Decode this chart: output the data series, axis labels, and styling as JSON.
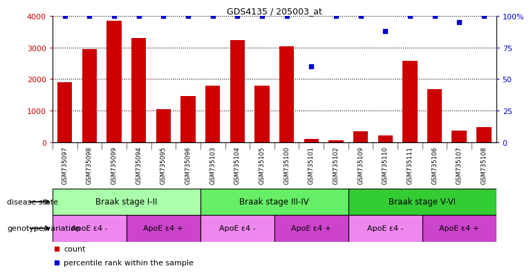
{
  "title": "GDS4135 / 205003_at",
  "samples": [
    "GSM735097",
    "GSM735098",
    "GSM735099",
    "GSM735094",
    "GSM735095",
    "GSM735096",
    "GSM735103",
    "GSM735104",
    "GSM735105",
    "GSM735100",
    "GSM735101",
    "GSM735102",
    "GSM735109",
    "GSM735110",
    "GSM735111",
    "GSM735106",
    "GSM735107",
    "GSM735108"
  ],
  "counts": [
    1900,
    2950,
    3850,
    3300,
    1050,
    1450,
    1780,
    3230,
    1800,
    3050,
    100,
    50,
    350,
    220,
    2580,
    1680,
    360,
    480
  ],
  "percentiles": [
    100,
    100,
    100,
    100,
    100,
    100,
    100,
    100,
    100,
    100,
    60,
    100,
    100,
    88,
    100,
    100,
    95,
    100
  ],
  "bar_color": "#cc0000",
  "dot_color": "#0000cc",
  "ylim_left": [
    0,
    4000
  ],
  "ylim_right": [
    0,
    100
  ],
  "yticks_left": [
    0,
    1000,
    2000,
    3000,
    4000
  ],
  "ytick_labels_left": [
    "0",
    "1000",
    "2000",
    "3000",
    "4000"
  ],
  "yticks_right": [
    0,
    25,
    50,
    75,
    100
  ],
  "ytick_labels_right": [
    "0",
    "25",
    "50",
    "75",
    "100%"
  ],
  "disease_stages": [
    {
      "label": "Braak stage I-II",
      "start": 0,
      "end": 6,
      "color": "#aaffaa"
    },
    {
      "label": "Braak stage III-IV",
      "start": 6,
      "end": 12,
      "color": "#66ee66"
    },
    {
      "label": "Braak stage V-VI",
      "start": 12,
      "end": 18,
      "color": "#33cc33"
    }
  ],
  "genotype_groups": [
    {
      "label": "ApoE ε4 -",
      "start": 0,
      "end": 3,
      "color": "#ee88ee"
    },
    {
      "label": "ApoE ε4 +",
      "start": 3,
      "end": 6,
      "color": "#cc44cc"
    },
    {
      "label": "ApoE ε4 -",
      "start": 6,
      "end": 9,
      "color": "#ee88ee"
    },
    {
      "label": "ApoE ε4 +",
      "start": 9,
      "end": 12,
      "color": "#cc44cc"
    },
    {
      "label": "ApoE ε4 -",
      "start": 12,
      "end": 15,
      "color": "#ee88ee"
    },
    {
      "label": "ApoE ε4 +",
      "start": 15,
      "end": 18,
      "color": "#cc44cc"
    }
  ],
  "left_label_disease": "disease state",
  "left_label_genotype": "genotype/variation",
  "legend_count_label": "count",
  "legend_pct_label": "percentile rank within the sample",
  "background_color": "#ffffff",
  "grid_color": "#000000",
  "tick_label_color_left": "#cc0000",
  "tick_label_color_right": "#0000cc"
}
